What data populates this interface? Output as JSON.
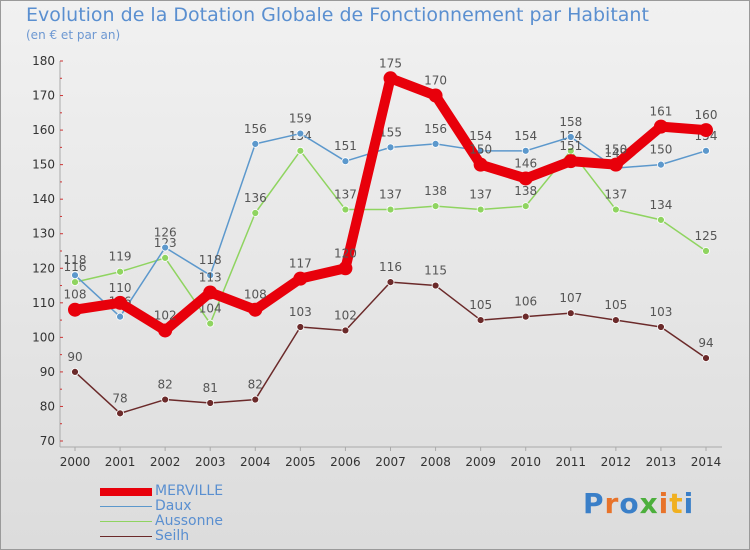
{
  "title": "Evolution de la Dotation Globale de Fonctionnement par Habitant",
  "subtitle": "(en € et par an)",
  "brand": {
    "text": "Proxiti",
    "letter_colors": [
      "#3a7fc8",
      "#e8732a",
      "#3a7fc8",
      "#4caf3c",
      "#e8732a",
      "#f0b020",
      "#3a7fc8"
    ]
  },
  "chart_data": {
    "type": "line",
    "categories": [
      "2000",
      "2001",
      "2002",
      "2003",
      "2004",
      "2005",
      "2006",
      "2007",
      "2008",
      "2009",
      "2010",
      "2011",
      "2012",
      "2013",
      "2014"
    ],
    "ylim": [
      70,
      180
    ],
    "yticks": [
      "70",
      "80",
      "90",
      "100",
      "110",
      "120",
      "130",
      "140",
      "150",
      "160",
      "170",
      "180"
    ],
    "grid": false,
    "legend_position": "bottom-left",
    "series": [
      {
        "name": "Seilh",
        "color": "#6b2a2a",
        "values": [
          90,
          78,
          82,
          81,
          82,
          103,
          102,
          116,
          115,
          105,
          106,
          107,
          105,
          103,
          94
        ],
        "labels": [
          "90",
          "78",
          "82",
          "81",
          "82",
          "103",
          "102",
          "116",
          "115",
          "105",
          "106",
          "107",
          "105",
          "103",
          "94"
        ]
      },
      {
        "name": "Aussonne",
        "color": "#8fd460",
        "values": [
          116,
          119,
          123,
          104,
          136,
          154,
          137,
          137,
          138,
          137,
          138,
          154,
          137,
          134,
          125
        ],
        "labels": [
          "116",
          "119",
          "123",
          "104",
          "136",
          "154",
          "137",
          "137",
          "138",
          "137",
          "138",
          "154",
          "137",
          "134",
          "125"
        ]
      },
      {
        "name": "Daux",
        "color": "#5c98cc",
        "values": [
          118,
          106,
          126,
          118,
          156,
          159,
          151,
          155,
          156,
          154,
          154,
          158,
          149,
          150,
          154
        ],
        "labels": [
          "118",
          "106",
          "126",
          "118",
          "156",
          "159",
          "151",
          "155",
          "156",
          "154",
          "154",
          "158",
          "149",
          "150",
          "154"
        ]
      },
      {
        "name": "MERVILLE",
        "color": "#e8000b",
        "values": [
          108,
          110,
          102,
          113,
          108,
          117,
          120,
          175,
          170,
          150,
          146,
          151,
          150,
          161,
          160
        ],
        "labels": [
          "108",
          "110",
          "102",
          "113",
          "108",
          "117",
          "120",
          "175",
          "170",
          "150",
          "146",
          "151",
          "150",
          "161",
          "160"
        ]
      }
    ],
    "legend": [
      {
        "name": "MERVILLE",
        "color": "#e8000b"
      },
      {
        "name": "Daux",
        "color": "#5c98cc"
      },
      {
        "name": "Aussonne",
        "color": "#8fd460"
      },
      {
        "name": "Seilh",
        "color": "#6b2a2a"
      }
    ]
  }
}
